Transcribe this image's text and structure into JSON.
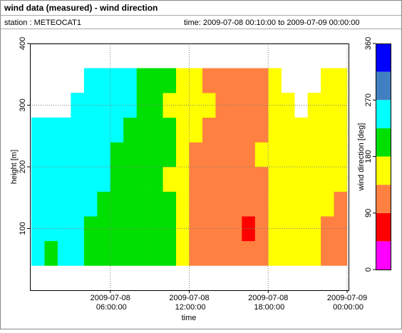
{
  "chart_data": {
    "type": "heatmap",
    "title": "wind data (measured) - wind direction",
    "station": "station : METEOCAT1",
    "time_range": "time: 2009-07-08 00:10:00 to 2009-07-09 00:00:00",
    "x_label": "time",
    "y_label": "height [m]",
    "colorbar_label": "wind direction [deg]",
    "xlim": [
      0,
      24
    ],
    "ylim": [
      0,
      400
    ],
    "xticks": [
      {
        "value": 6,
        "label": "2009-07-08 06:00:00"
      },
      {
        "value": 12,
        "label": "2009-07-08 12:00:00"
      },
      {
        "value": 18,
        "label": "2009-07-08 18:00:00"
      },
      {
        "value": 24,
        "label": "2009-07-09 00:00:00"
      }
    ],
    "yticks": [
      100,
      200,
      300,
      400
    ],
    "grid": true,
    "clim": [
      0,
      360
    ],
    "cticks": [
      0,
      90,
      180,
      270,
      360
    ],
    "colors": [
      "#ff00ff",
      "#ff0000",
      "#ff8040",
      "#ffff00",
      "#00e000",
      "#00ffff",
      "#4080c0",
      "#0000ff"
    ],
    "x_bins": [
      0,
      1,
      2,
      3,
      4,
      5,
      6,
      7,
      8,
      9,
      10,
      11,
      12,
      13,
      14,
      15,
      16,
      17,
      18,
      19,
      20,
      21,
      22,
      23,
      24
    ],
    "y_bins": [
      40,
      80,
      120,
      160,
      200,
      240,
      280,
      320,
      360
    ],
    "z": [
      [
        240,
        240,
        240,
        240,
        240,
        240,
        null,
        null
      ],
      [
        200,
        240,
        240,
        240,
        240,
        240,
        null,
        null
      ],
      [
        240,
        240,
        240,
        240,
        240,
        240,
        null,
        null
      ],
      [
        240,
        240,
        240,
        240,
        240,
        240,
        240,
        null
      ],
      [
        200,
        200,
        240,
        240,
        240,
        240,
        240,
        240
      ],
      [
        200,
        200,
        200,
        240,
        240,
        240,
        240,
        240
      ],
      [
        200,
        200,
        200,
        200,
        200,
        240,
        240,
        240
      ],
      [
        200,
        200,
        200,
        200,
        200,
        200,
        240,
        240
      ],
      [
        200,
        200,
        200,
        200,
        200,
        200,
        200,
        200
      ],
      [
        200,
        200,
        200,
        200,
        200,
        200,
        200,
        200
      ],
      [
        200,
        200,
        200,
        160,
        200,
        200,
        160,
        200
      ],
      [
        160,
        160,
        160,
        160,
        160,
        160,
        160,
        160
      ],
      [
        120,
        120,
        120,
        120,
        120,
        160,
        160,
        160
      ],
      [
        120,
        120,
        120,
        120,
        120,
        120,
        160,
        120
      ],
      [
        120,
        120,
        120,
        120,
        120,
        120,
        120,
        120
      ],
      [
        120,
        120,
        120,
        120,
        120,
        120,
        120,
        120
      ],
      [
        120,
        70,
        120,
        120,
        120,
        120,
        120,
        120
      ],
      [
        120,
        120,
        120,
        120,
        160,
        120,
        120,
        120
      ],
      [
        160,
        160,
        160,
        160,
        160,
        160,
        160,
        160
      ],
      [
        160,
        160,
        160,
        160,
        160,
        160,
        160,
        null
      ],
      [
        160,
        160,
        160,
        160,
        160,
        160,
        null,
        null
      ],
      [
        160,
        160,
        160,
        160,
        160,
        160,
        160,
        null
      ],
      [
        120,
        120,
        160,
        160,
        160,
        160,
        160,
        160
      ],
      [
        120,
        120,
        120,
        160,
        160,
        160,
        160,
        160
      ]
    ]
  }
}
